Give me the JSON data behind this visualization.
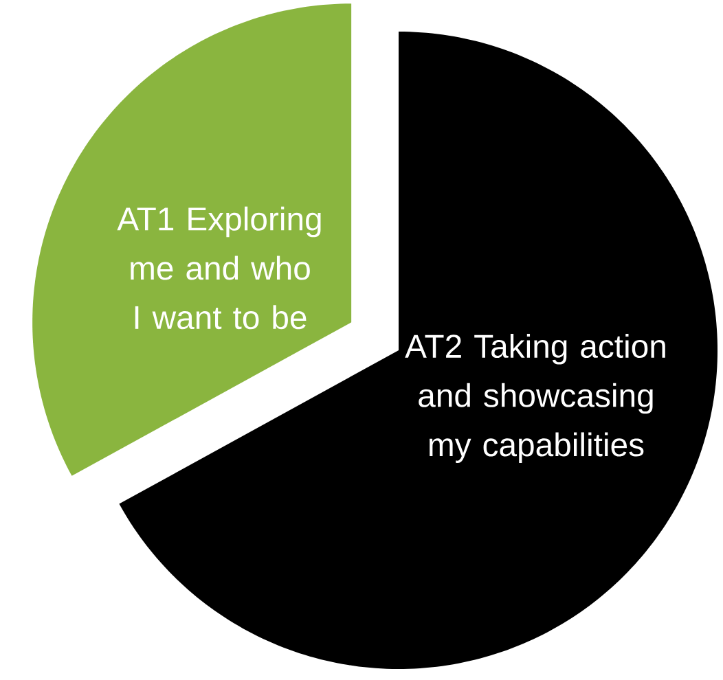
{
  "chart_data": {
    "type": "pie",
    "categories": [
      "AT1 Exploring me and who I want to be",
      "AT2 Taking action and showcasing my capabilities"
    ],
    "values": [
      33,
      67
    ],
    "colors": [
      "#8ab53f",
      "#000000"
    ]
  }
}
